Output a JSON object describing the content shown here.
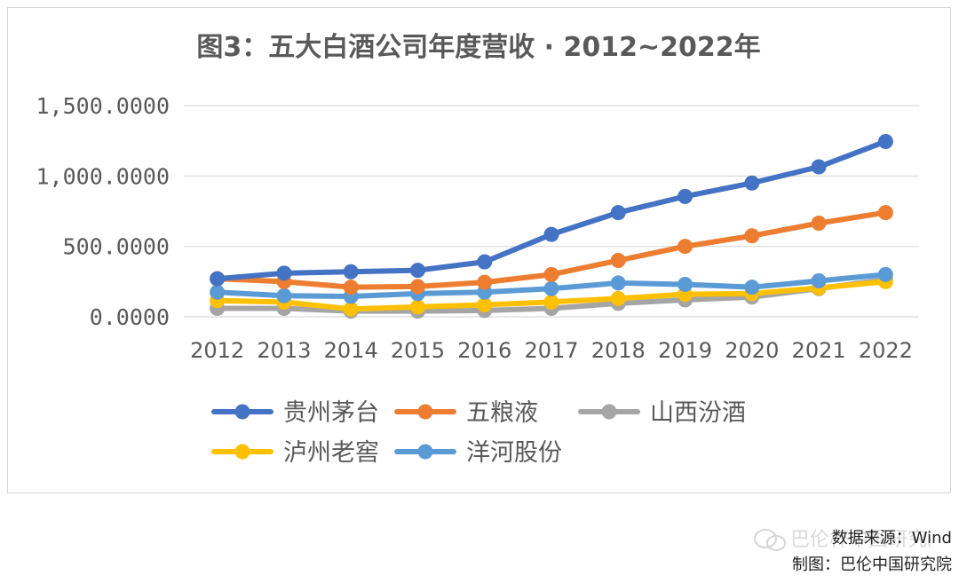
{
  "chart_data": {
    "type": "line",
    "title": "图3：五大白酒公司年度营收 · 2012~2022年",
    "xlabel": "",
    "ylabel": "",
    "categories": [
      "2012",
      "2013",
      "2014",
      "2015",
      "2016",
      "2017",
      "2018",
      "2019",
      "2020",
      "2021",
      "2022"
    ],
    "ylim": [
      0,
      1500
    ],
    "yticks": [
      0,
      500,
      1000,
      1500
    ],
    "ytick_labels": [
      "0.0000",
      "500.0000",
      "1,000.0000",
      "1,500.0000"
    ],
    "grid": "horizontal",
    "legend_position": "bottom",
    "series": [
      {
        "name": "贵州茅台",
        "color": "#4472C4",
        "values": [
          270,
          310,
          320,
          330,
          390,
          585,
          740,
          855,
          950,
          1065,
          1245
        ]
      },
      {
        "name": "五粮液",
        "color": "#ED7D31",
        "values": [
          270,
          250,
          210,
          215,
          245,
          300,
          400,
          500,
          575,
          665,
          740
        ]
      },
      {
        "name": "山西汾酒",
        "color": "#A5A5A5",
        "values": [
          60,
          60,
          40,
          40,
          45,
          60,
          95,
          120,
          140,
          200,
          265
        ]
      },
      {
        "name": "泸州老窖",
        "color": "#FFC000",
        "values": [
          115,
          105,
          55,
          70,
          85,
          105,
          130,
          160,
          165,
          205,
          250
        ]
      },
      {
        "name": "洋河股份",
        "color": "#5B9BD5",
        "values": [
          175,
          150,
          145,
          165,
          175,
          200,
          240,
          230,
          210,
          255,
          300
        ]
      }
    ]
  },
  "footer": {
    "source": "数据来源：Wind",
    "credit": "制图：巴伦中国研究院"
  },
  "watermark": {
    "text": "巴伦杯中国研究院"
  }
}
